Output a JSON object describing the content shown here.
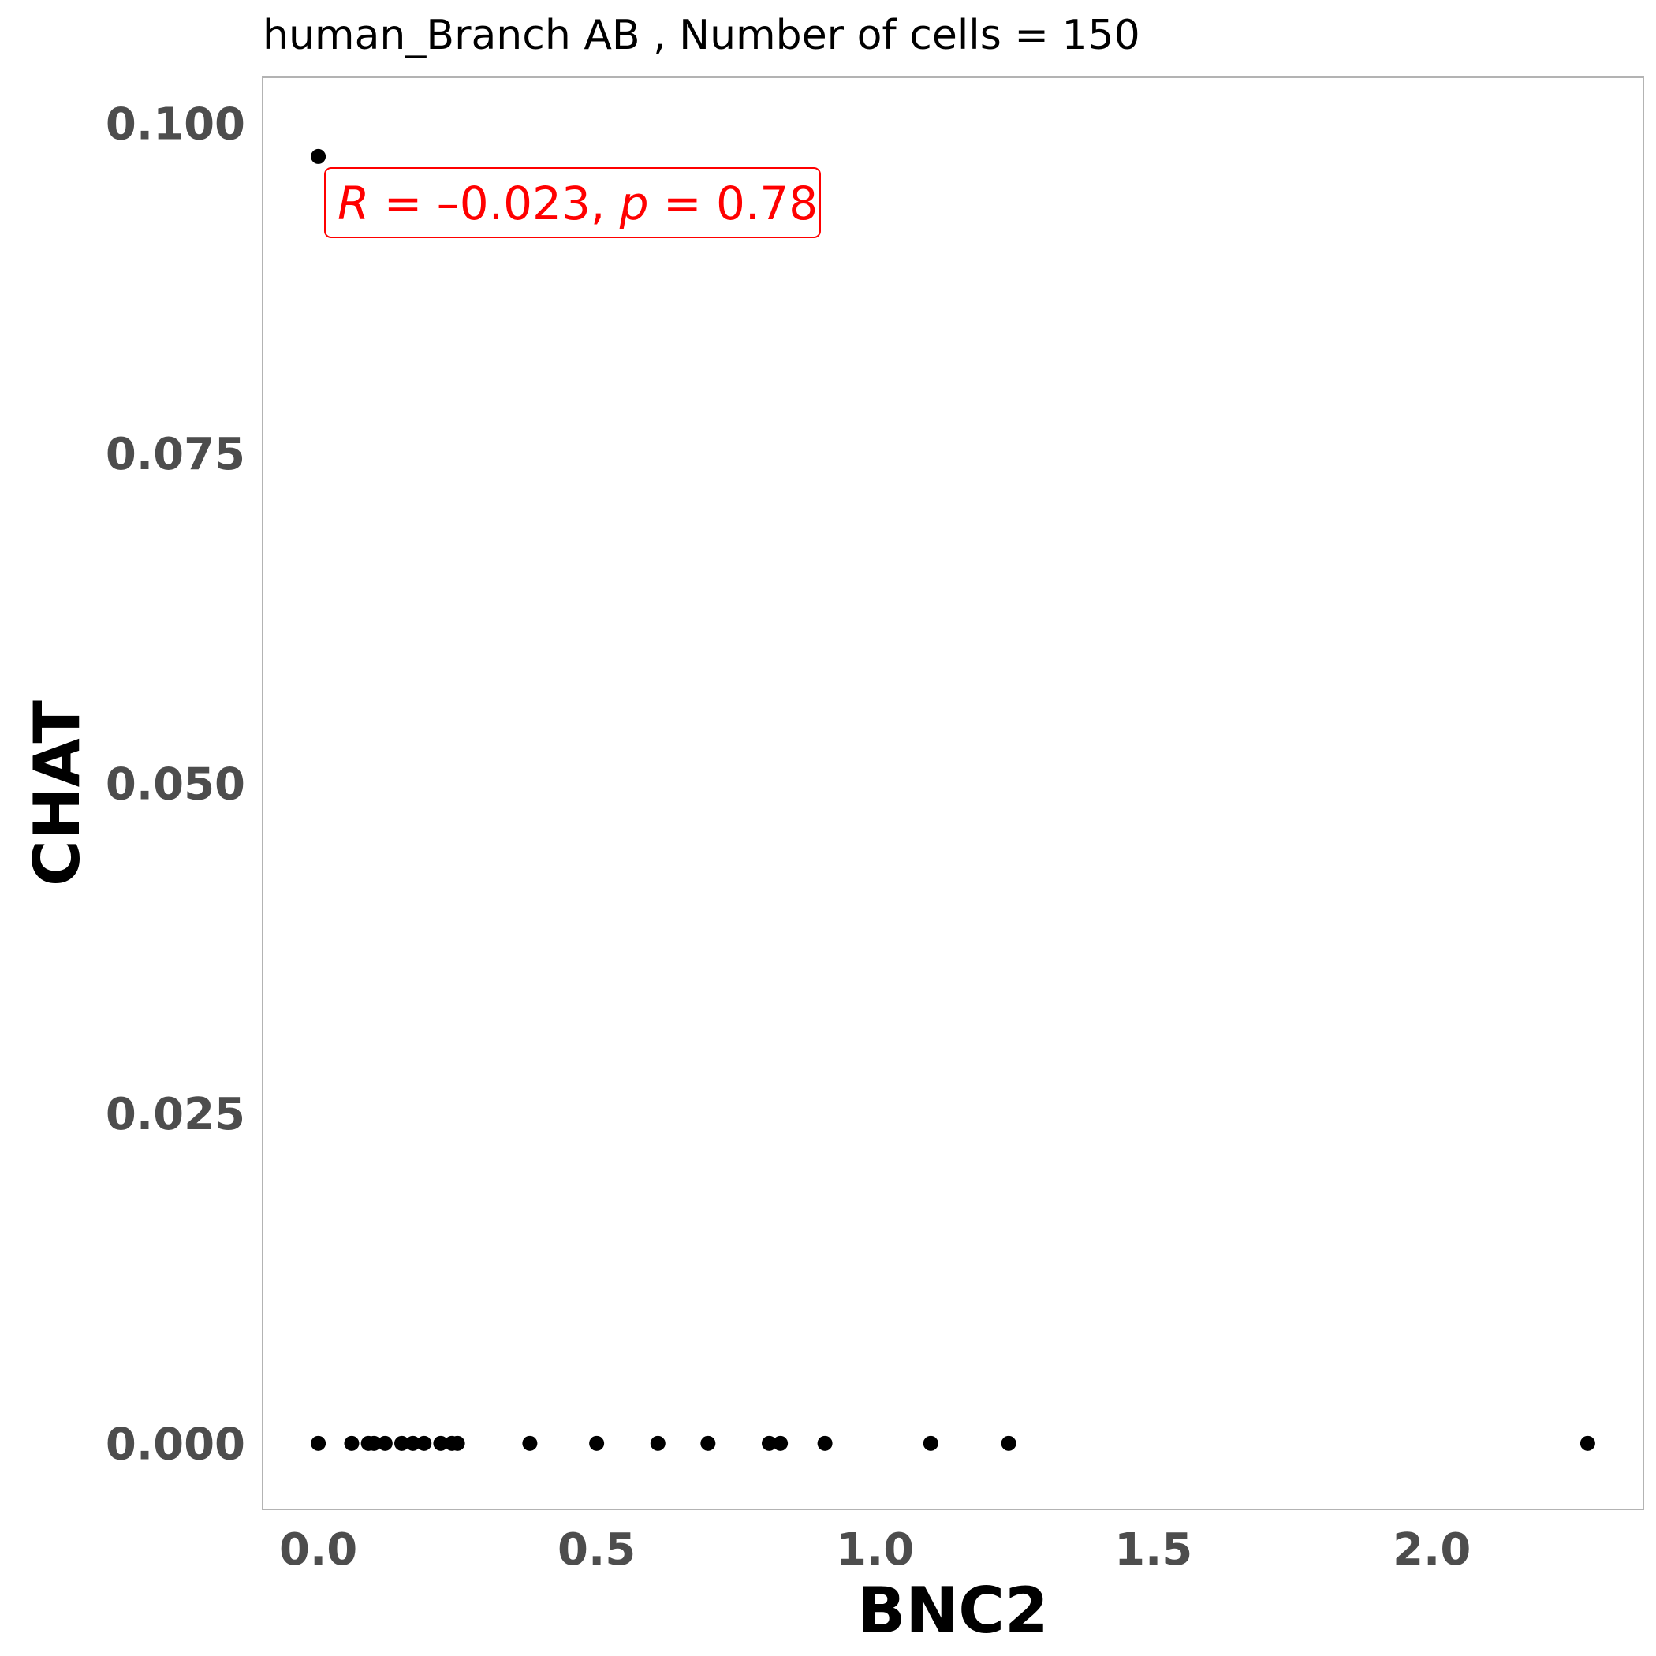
{
  "chart_data": {
    "type": "scatter",
    "title": "human_Branch AB , Number of cells =  150",
    "xlabel": "BNC2",
    "ylabel": "CHAT",
    "xlim": [
      -0.1,
      2.38
    ],
    "ylim": [
      -0.005,
      0.1035
    ],
    "xticks": [
      0.0,
      0.5,
      1.0,
      1.5,
      2.0
    ],
    "xtick_labels": [
      "0.0",
      "0.5",
      "1.0",
      "1.5",
      "2.0"
    ],
    "yticks": [
      0.0,
      0.025,
      0.05,
      0.075,
      0.1
    ],
    "ytick_labels": [
      "0.000",
      "0.025",
      "0.050",
      "0.075",
      "0.100"
    ],
    "grid": false,
    "point_color": "#000000",
    "points": [
      {
        "x": 0.0,
        "y": 0.0975
      },
      {
        "x": 0.0,
        "y": 0.0
      },
      {
        "x": 0.06,
        "y": 0.0
      },
      {
        "x": 0.09,
        "y": 0.0
      },
      {
        "x": 0.1,
        "y": 0.0
      },
      {
        "x": 0.12,
        "y": 0.0
      },
      {
        "x": 0.15,
        "y": 0.0
      },
      {
        "x": 0.17,
        "y": 0.0
      },
      {
        "x": 0.19,
        "y": 0.0
      },
      {
        "x": 0.22,
        "y": 0.0
      },
      {
        "x": 0.24,
        "y": 0.0
      },
      {
        "x": 0.25,
        "y": 0.0
      },
      {
        "x": 0.38,
        "y": 0.0
      },
      {
        "x": 0.5,
        "y": 0.0
      },
      {
        "x": 0.61,
        "y": 0.0
      },
      {
        "x": 0.7,
        "y": 0.0
      },
      {
        "x": 0.81,
        "y": 0.0
      },
      {
        "x": 0.83,
        "y": 0.0
      },
      {
        "x": 0.91,
        "y": 0.0
      },
      {
        "x": 1.1,
        "y": 0.0
      },
      {
        "x": 1.24,
        "y": 0.0
      },
      {
        "x": 2.28,
        "y": 0.0
      }
    ],
    "annotation": {
      "r_symbol": "R",
      "eq1": " = ",
      "r_value": "–0.023",
      "sep": ", ",
      "p_symbol": "p",
      "eq2": " = ",
      "p_value": "0.78",
      "color": "#ff0000"
    }
  }
}
